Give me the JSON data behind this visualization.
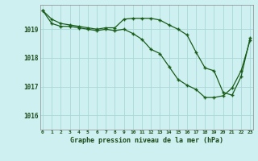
{
  "title": "Graphe pression niveau de la mer (hPa)",
  "ylim": [
    1015.5,
    1019.85
  ],
  "yticks": [
    1016,
    1017,
    1018,
    1019
  ],
  "bg_color": "#cff0f0",
  "grid_color": "#aad8d8",
  "line_color": "#1a5c1a",
  "series1": [
    1019.65,
    1019.35,
    1019.2,
    1019.15,
    1019.1,
    1019.05,
    1019.0,
    1019.05,
    1019.05,
    1019.35,
    1019.38,
    1019.38,
    1019.38,
    1019.32,
    1019.15,
    1019.0,
    1018.8,
    1018.2,
    1017.65,
    1017.55,
    1016.8,
    1016.7,
    1017.35,
    1018.7
  ],
  "series2": [
    1019.65,
    1019.2,
    1019.1,
    1019.1,
    1019.05,
    1019.0,
    1018.95,
    1019.0,
    1018.95,
    1019.0,
    1018.85,
    1018.65,
    1018.3,
    1018.15,
    1017.7,
    1017.25,
    1017.05,
    1016.9,
    1016.62,
    1016.62,
    1016.68,
    1016.95,
    1017.55,
    1018.62
  ],
  "xtick_labels": [
    "0",
    "1",
    "2",
    "3",
    "4",
    "5",
    "6",
    "7",
    "8",
    "9",
    "10",
    "11",
    "12",
    "13",
    "14",
    "15",
    "16",
    "17",
    "18",
    "19",
    "20",
    "21",
    "22",
    "23"
  ]
}
